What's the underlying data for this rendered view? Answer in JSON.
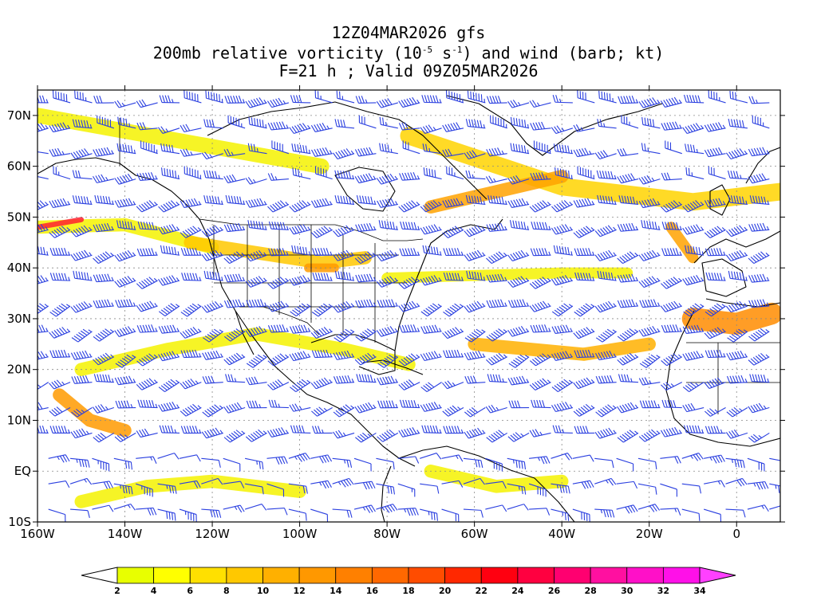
{
  "header": {
    "line1": "12Z04MAR2026 gfs",
    "line2_pre": "200mb relative vorticity (10",
    "line2_exp1": "-5",
    "line2_mid": " s",
    "line2_exp2": "-1",
    "line2_post": ") and wind (barb; kt)",
    "line3": "F=21 h ; Valid 09Z05MAR2026"
  },
  "map": {
    "lon_range": [
      -160,
      10
    ],
    "lat_range": [
      -10,
      75
    ],
    "lon_ticks": [
      {
        "value": -160,
        "label": "160W"
      },
      {
        "value": -140,
        "label": "140W"
      },
      {
        "value": -120,
        "label": "120W"
      },
      {
        "value": -100,
        "label": "100W"
      },
      {
        "value": -80,
        "label": "80W"
      },
      {
        "value": -60,
        "label": "60W"
      },
      {
        "value": -40,
        "label": "40W"
      },
      {
        "value": -20,
        "label": "20W"
      },
      {
        "value": 0,
        "label": "0"
      }
    ],
    "lat_ticks": [
      {
        "value": 70,
        "label": "70N"
      },
      {
        "value": 60,
        "label": "60N"
      },
      {
        "value": 50,
        "label": "50N"
      },
      {
        "value": 40,
        "label": "40N"
      },
      {
        "value": 30,
        "label": "30N"
      },
      {
        "value": 20,
        "label": "20N"
      },
      {
        "value": 10,
        "label": "10N"
      },
      {
        "value": 0,
        "label": "EQ"
      },
      {
        "value": -10,
        "label": "10S"
      }
    ],
    "colors": {
      "gridline": "#888888",
      "coastline": "#000000",
      "barb": "#2a3fe0",
      "frame": "#000000"
    },
    "vorticity_bands": [
      {
        "lon": [
          -160,
          -95
        ],
        "lat": [
          70,
          60
        ],
        "color": "#f5f200",
        "width": 3.5
      },
      {
        "lon": [
          -75,
          -40,
          -10,
          10
        ],
        "lat": [
          66,
          56,
          53,
          55
        ],
        "color": "#ffd400",
        "width": 4
      },
      {
        "lon": [
          -70,
          -55,
          -40
        ],
        "lat": [
          52,
          55,
          58
        ],
        "color": "#ffa200",
        "width": 3
      },
      {
        "lon": [
          -160,
          -140,
          -120
        ],
        "lat": [
          48,
          48.5,
          44
        ],
        "color": "#f5f200",
        "width": 3
      },
      {
        "lon": [
          -160,
          -150
        ],
        "lat": [
          48,
          49.5
        ],
        "color": "#ff2030",
        "width": 1.2
      },
      {
        "lon": [
          -125,
          -110,
          -95,
          -85
        ],
        "lat": [
          45,
          43,
          41,
          42
        ],
        "color": "#ffc800",
        "width": 3
      },
      {
        "lon": [
          -98,
          -92
        ],
        "lat": [
          40,
          40
        ],
        "color": "#ff9a00",
        "width": 2
      },
      {
        "lon": [
          -80,
          -60,
          -40,
          -25
        ],
        "lat": [
          38,
          38.5,
          39,
          39
        ],
        "color": "#f5f200",
        "width": 2.5
      },
      {
        "lon": [
          -60,
          -35,
          -20
        ],
        "lat": [
          25,
          23,
          25
        ],
        "color": "#ffb000",
        "width": 3
      },
      {
        "lon": [
          -150,
          -130,
          -110,
          -90,
          -75
        ],
        "lat": [
          20,
          24,
          27,
          24,
          21
        ],
        "color": "#f5f200",
        "width": 3
      },
      {
        "lon": [
          -155,
          -148,
          -140
        ],
        "lat": [
          15,
          10,
          8
        ],
        "color": "#ff9a00",
        "width": 3
      },
      {
        "lon": [
          -150,
          -135,
          -120,
          -100
        ],
        "lat": [
          -6,
          -3,
          -2,
          -4
        ],
        "color": "#f5f200",
        "width": 3
      },
      {
        "lon": [
          -10,
          0,
          8
        ],
        "lat": [
          30,
          29,
          31
        ],
        "color": "#ff8c00",
        "width": 5
      },
      {
        "lon": [
          -15,
          -10
        ],
        "lat": [
          48,
          42
        ],
        "color": "#ffa200",
        "width": 2.5
      },
      {
        "lon": [
          -70,
          -55,
          -40
        ],
        "lat": [
          0,
          -3,
          -2
        ],
        "color": "#f5f200",
        "width": 3
      }
    ],
    "wind_field": {
      "barb_spacing_deg": [
        5,
        5
      ],
      "regimes": [
        {
          "lat": [
            55,
            75
          ],
          "dir_deg": 270,
          "speed_kt": 50
        },
        {
          "lat": [
            35,
            55
          ],
          "dir_deg": 260,
          "speed_kt": 90
        },
        {
          "lat": [
            20,
            35
          ],
          "dir_deg": 250,
          "speed_kt": 110
        },
        {
          "lat": [
            5,
            20
          ],
          "dir_deg": 255,
          "speed_kt": 60
        },
        {
          "lat": [
            -10,
            5
          ],
          "dir_deg": 90,
          "speed_kt": 20
        }
      ]
    }
  },
  "colorbar": {
    "labels": [
      "2",
      "4",
      "6",
      "8",
      "10",
      "12",
      "14",
      "16",
      "18",
      "20",
      "22",
      "24",
      "26",
      "28",
      "30",
      "32",
      "34"
    ],
    "colors": [
      "#e8ff00",
      "#ffff00",
      "#ffe000",
      "#ffc800",
      "#ffb000",
      "#ff9800",
      "#ff8000",
      "#ff6800",
      "#ff4c00",
      "#ff2800",
      "#ff0010",
      "#ff0040",
      "#ff0070",
      "#ff10a0",
      "#ff10c8",
      "#ff10e8"
    ],
    "under_color": "#ffffff",
    "over_color": "#ff40ff"
  }
}
